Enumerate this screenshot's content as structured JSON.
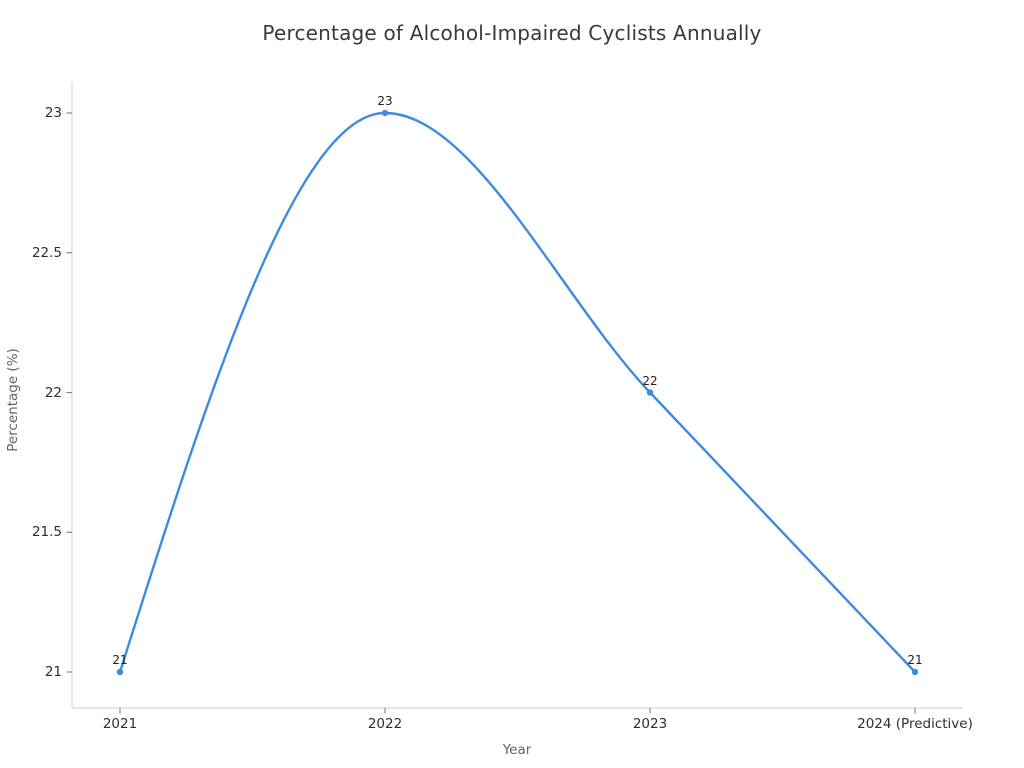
{
  "chart_data": {
    "type": "line",
    "title": "Percentage of Alcohol-Impaired Cyclists Annually",
    "xlabel": "Year",
    "ylabel": "Percentage (%)",
    "categories": [
      "2021",
      "2022",
      "2023",
      "2024 (Predictive)"
    ],
    "series": [
      {
        "name": "Percentage of Alcohol-Impaired Cyclists",
        "values": [
          21,
          23,
          22,
          21
        ]
      }
    ],
    "point_labels": [
      "21",
      "23",
      "22",
      "21"
    ],
    "yticks": [
      21,
      21.5,
      22,
      22.5,
      23
    ],
    "ytick_labels": [
      "21",
      "21.5",
      "22",
      "22.5",
      "23"
    ],
    "ylim": [
      21,
      23
    ],
    "line_shape": "monotone-spline",
    "grid": false,
    "legend": "none",
    "colors": {
      "line": "#3d8be1",
      "marker": "#3d8be1",
      "axis_line": "#d5d5d5",
      "tick_mark": "#7d7d7d",
      "tick_label": "#2f2f2f",
      "axis_title": "#5f6368",
      "title": "#37393c",
      "point_label": "#202020",
      "background": "#ffffff"
    }
  }
}
